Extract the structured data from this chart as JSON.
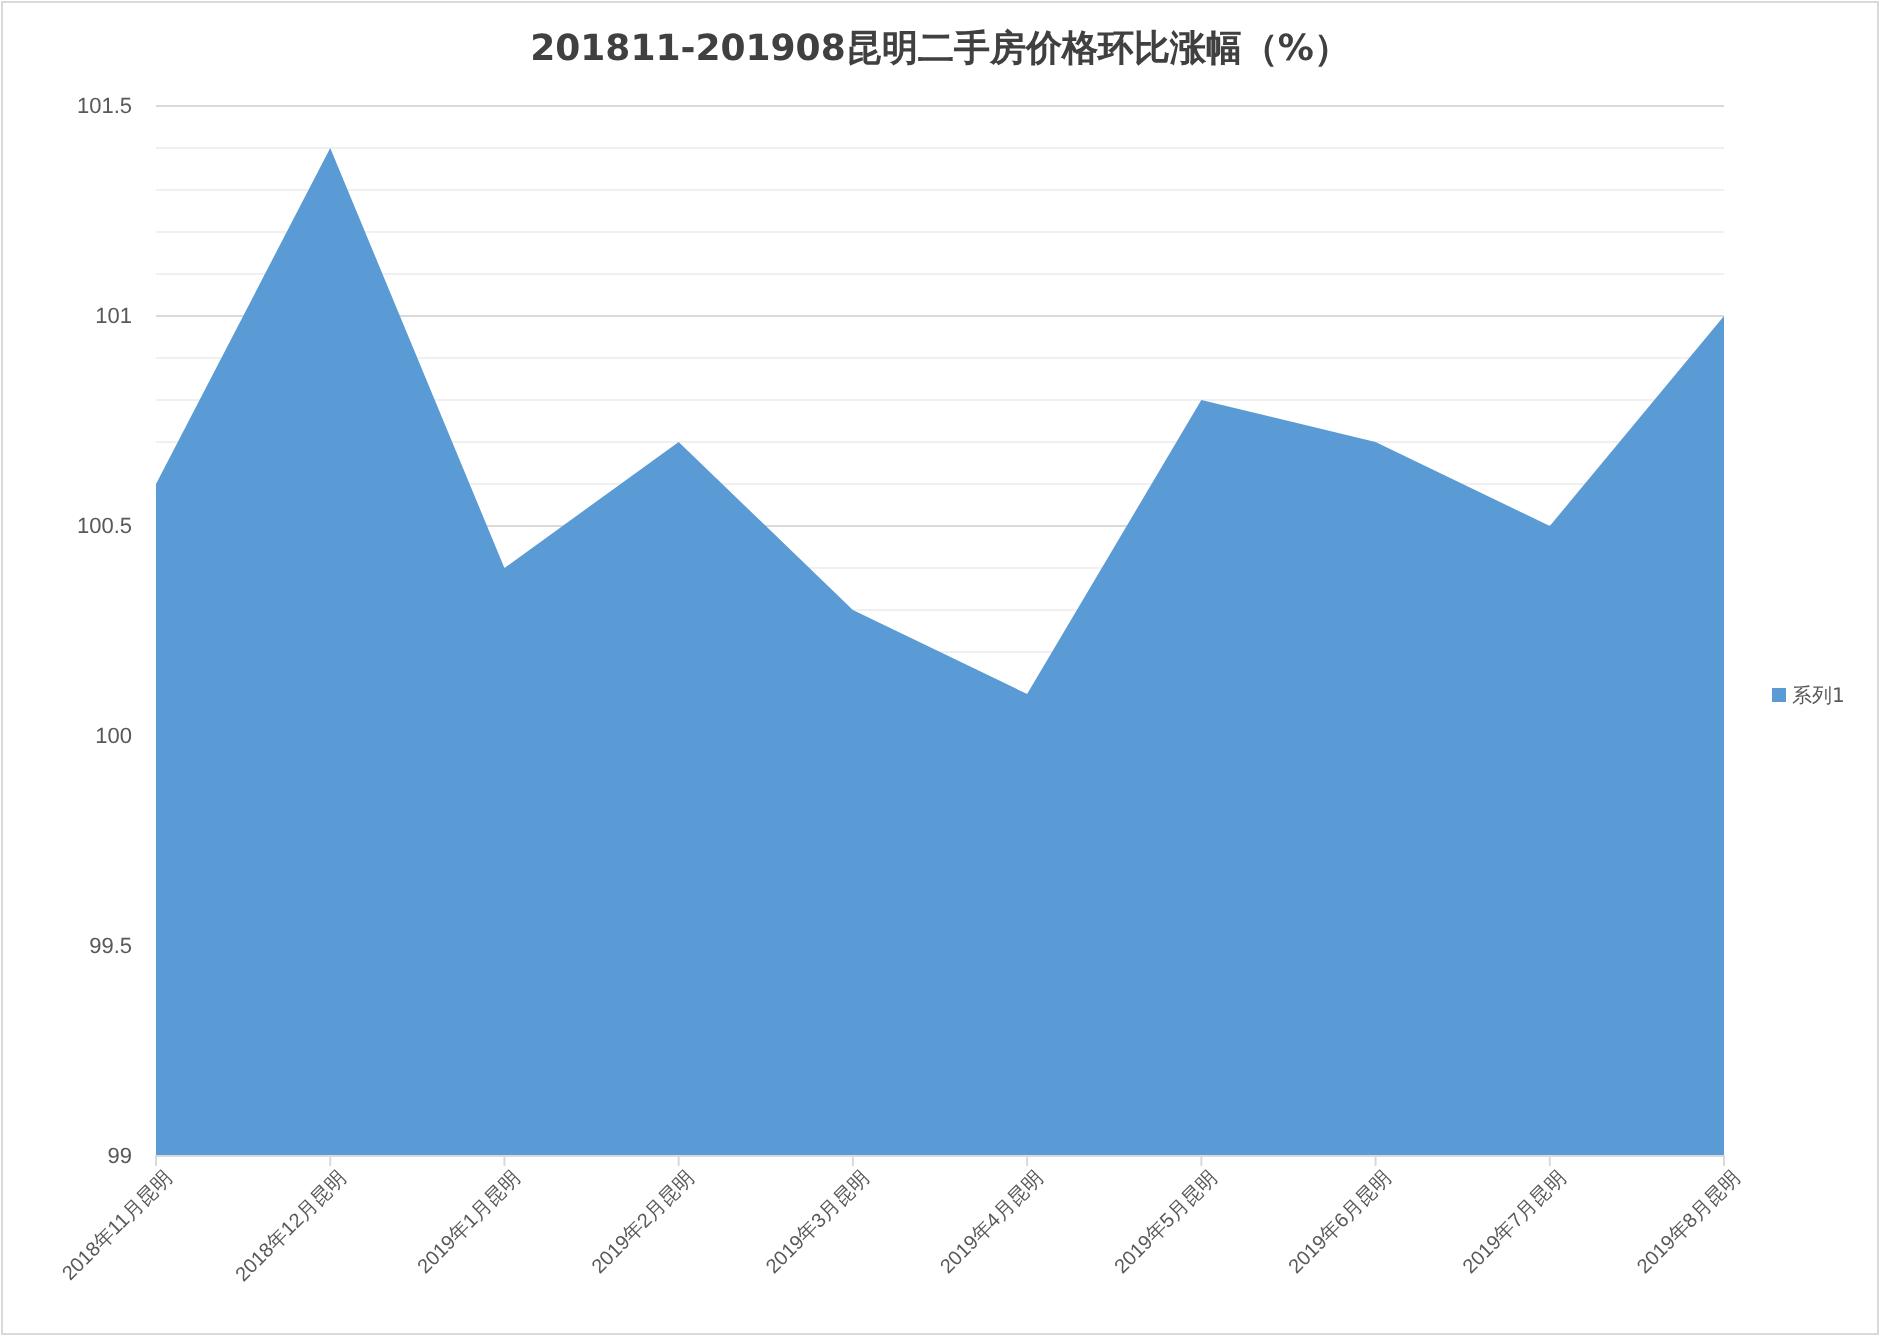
{
  "chart_data": {
    "type": "area",
    "title": "201811-201908昆明二手房价格环比涨幅（%）",
    "categories": [
      "2018年11月昆明",
      "2018年12月昆明",
      "2019年1月昆明",
      "2019年2月昆明",
      "2019年3月昆明",
      "2019年4月昆明",
      "2019年5月昆明",
      "2019年6月昆明",
      "2019年7月昆明",
      "2019年8月昆明"
    ],
    "series": [
      {
        "name": "系列1",
        "color": "#5b9bd5",
        "values": [
          100.6,
          101.4,
          100.4,
          100.7,
          100.3,
          100.1,
          100.8,
          100.7,
          100.5,
          101.0
        ]
      }
    ],
    "ylim": [
      99,
      101.5
    ],
    "yticks": [
      99,
      99.5,
      100,
      {
        "value": 100.1,
        "label": null
      },
      {
        "value": 100.2,
        "label": null
      },
      {
        "value": 100.3,
        "label": null
      },
      {
        "value": 100.4,
        "label": null
      },
      100.5,
      {
        "value": 100.6,
        "label": null
      },
      {
        "value": 100.7,
        "label": null
      },
      {
        "value": 100.8,
        "label": null
      },
      {
        "value": 100.9,
        "label": null
      },
      101,
      {
        "value": 101.1,
        "label": null
      },
      {
        "value": 101.2,
        "label": null
      },
      {
        "value": 101.3,
        "label": null
      },
      {
        "value": 101.4,
        "label": null
      },
      101.5
    ],
    "grid": "y",
    "legend": "right"
  }
}
